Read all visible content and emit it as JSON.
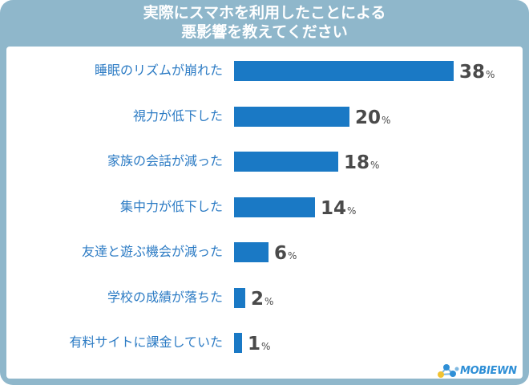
{
  "title_lines": [
    "実際にスマホを利用したことによる",
    "悪影響を教えてください"
  ],
  "logo_text": "MOBIEWN",
  "colors": {
    "frame": "#8fb7cb",
    "bar": "#1a79c5",
    "label": "#2c7bc4",
    "value": "#4a4a4a",
    "logo": "#2f8fd6"
  },
  "chart_data": {
    "type": "bar",
    "orientation": "horizontal",
    "title": "実際にスマホを利用したことによる悪影響を教えてください",
    "categories": [
      "睡眠のリズムが崩れた",
      "視力が低下した",
      "家族の会話が減った",
      "集中力が低下した",
      "友達と遊ぶ機会が減った",
      "学校の成績が落ちた",
      "有料サイトに課金していた"
    ],
    "values": [
      38,
      20,
      18,
      14,
      6,
      2,
      1
    ],
    "value_labels": [
      "38",
      "20",
      "18",
      "14",
      "6",
      "2",
      "1"
    ],
    "unit": "%",
    "xlim": [
      0,
      38
    ],
    "grid": false,
    "legend": "none"
  }
}
